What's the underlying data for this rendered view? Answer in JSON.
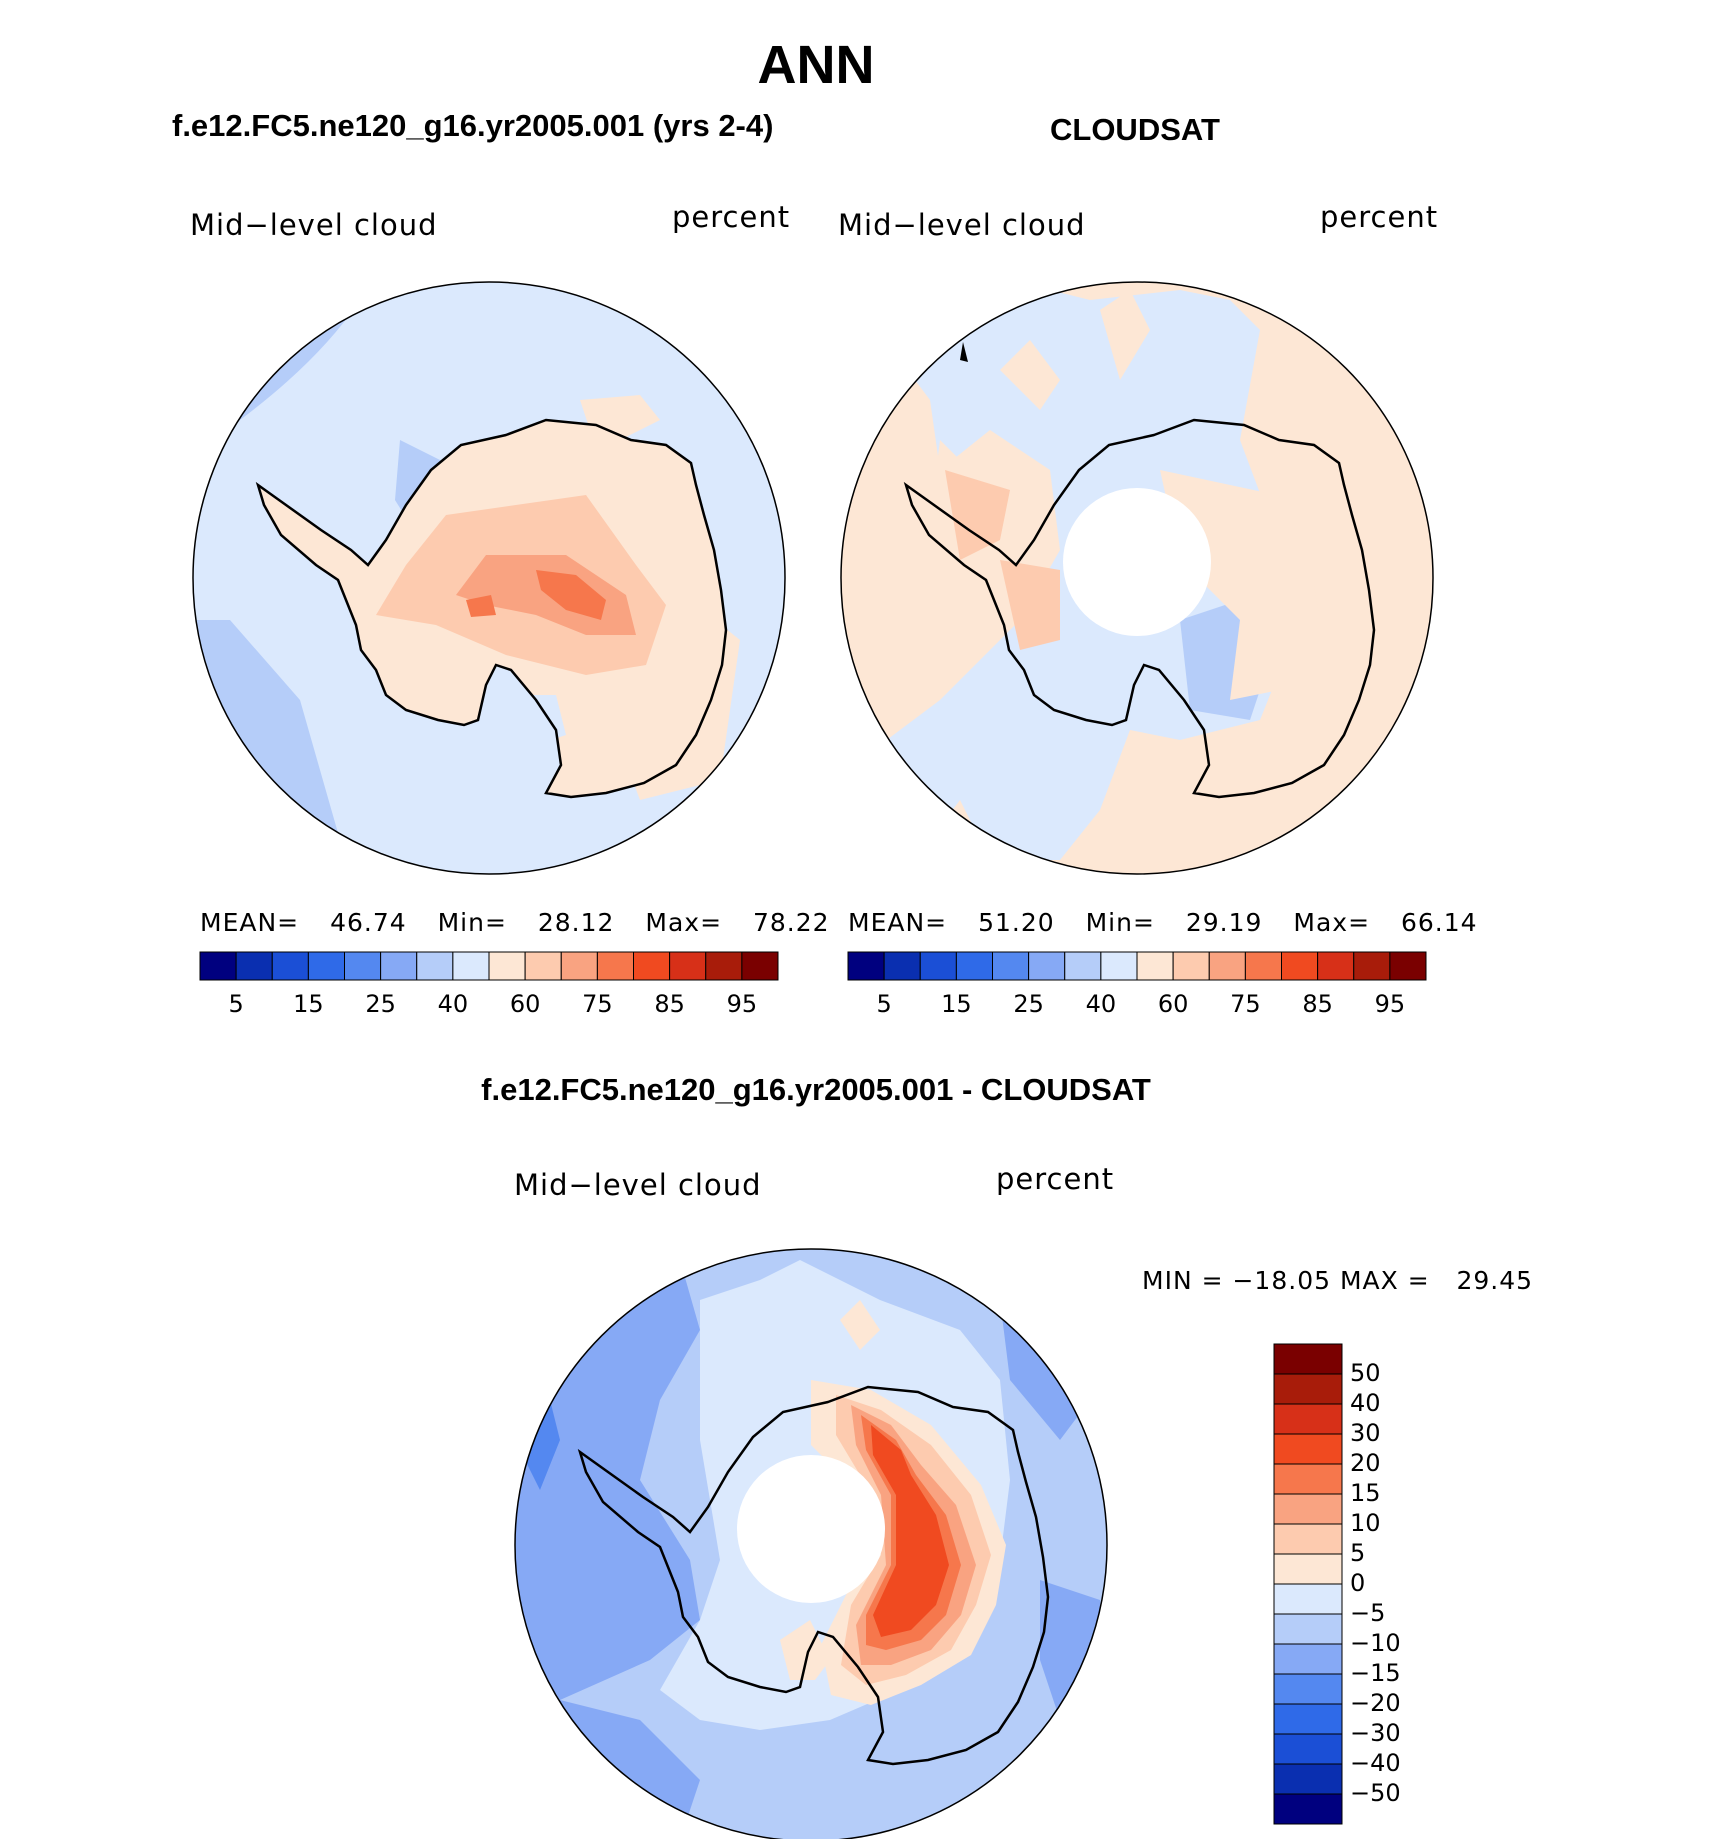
{
  "figure": {
    "title": "ANN",
    "panel_titles": {
      "model": "f.e12.FC5.ne120_g16.yr2005.001 (yrs 2-4)",
      "obs": "CLOUDSAT",
      "diff": "f.e12.FC5.ne120_g16.yr2005.001 - CLOUDSAT"
    },
    "variable": "Mid−level cloud",
    "units": "percent"
  },
  "panels": {
    "model": {
      "stats": {
        "mean_label": "MEAN=",
        "mean": "46.74",
        "min_label": "Min=",
        "min": "28.12",
        "max_label": "Max=",
        "max": "78.22"
      }
    },
    "obs": {
      "stats": {
        "mean_label": "MEAN=",
        "mean": "51.20",
        "min_label": "Min=",
        "min": "29.19",
        "max_label": "Max=",
        "max": "66.14"
      }
    },
    "diff": {
      "stats": {
        "text": "MIN = −18.05 MAX =   29.45"
      }
    }
  },
  "colorbars": {
    "absolute": {
      "colors": [
        "#00007f",
        "#0a2fb0",
        "#1b4fd6",
        "#2f6ae8",
        "#5488f0",
        "#86a9f5",
        "#b5cdf9",
        "#dbe9fd",
        "#fde7d5",
        "#fdcbaf",
        "#f9a381",
        "#f6774c",
        "#f04a20",
        "#d73018",
        "#a81c0a",
        "#7a0000"
      ],
      "tick_labels": [
        "5",
        "15",
        "25",
        "40",
        "60",
        "75",
        "85",
        "95"
      ]
    },
    "difference": {
      "colors": [
        "#7a0000",
        "#a81c0a",
        "#d73018",
        "#f04a20",
        "#f6774c",
        "#f9a381",
        "#fdcbaf",
        "#fde7d5",
        "#dbe9fd",
        "#b5cdf9",
        "#86a9f5",
        "#5488f0",
        "#2f6ae8",
        "#1b4fd6",
        "#0a2fb0",
        "#00007f"
      ],
      "tick_labels": [
        "50",
        "40",
        "30",
        "20",
        "15",
        "10",
        "5",
        "0",
        "−5",
        "−10",
        "−15",
        "−20",
        "−30",
        "−40",
        "−50"
      ]
    }
  },
  "chart_data": [
    {
      "type": "heatmap",
      "title": "f.e12.FC5.ne120_g16.yr2005.001 (yrs 2-4)",
      "variable": "Mid−level cloud",
      "units": "percent",
      "projection": "south-polar-stereographic",
      "mean": 46.74,
      "min": 28.12,
      "max": 78.22,
      "levels": [
        5,
        10,
        15,
        20,
        25,
        30,
        40,
        50,
        60,
        70,
        75,
        80,
        85,
        90,
        95
      ]
    },
    {
      "type": "heatmap",
      "title": "CLOUDSAT",
      "variable": "Mid−level cloud",
      "units": "percent",
      "projection": "south-polar-stereographic",
      "mean": 51.2,
      "min": 29.19,
      "max": 66.14,
      "levels": [
        5,
        10,
        15,
        20,
        25,
        30,
        40,
        50,
        60,
        70,
        75,
        80,
        85,
        90,
        95
      ]
    },
    {
      "type": "heatmap",
      "title": "f.e12.FC5.ne120_g16.yr2005.001 - CLOUDSAT",
      "variable": "Mid−level cloud",
      "units": "percent",
      "projection": "south-polar-stereographic",
      "min": -18.05,
      "max": 29.45,
      "levels": [
        -50,
        -40,
        -30,
        -20,
        -15,
        -10,
        -5,
        0,
        5,
        10,
        15,
        20,
        30,
        40,
        50
      ]
    }
  ]
}
